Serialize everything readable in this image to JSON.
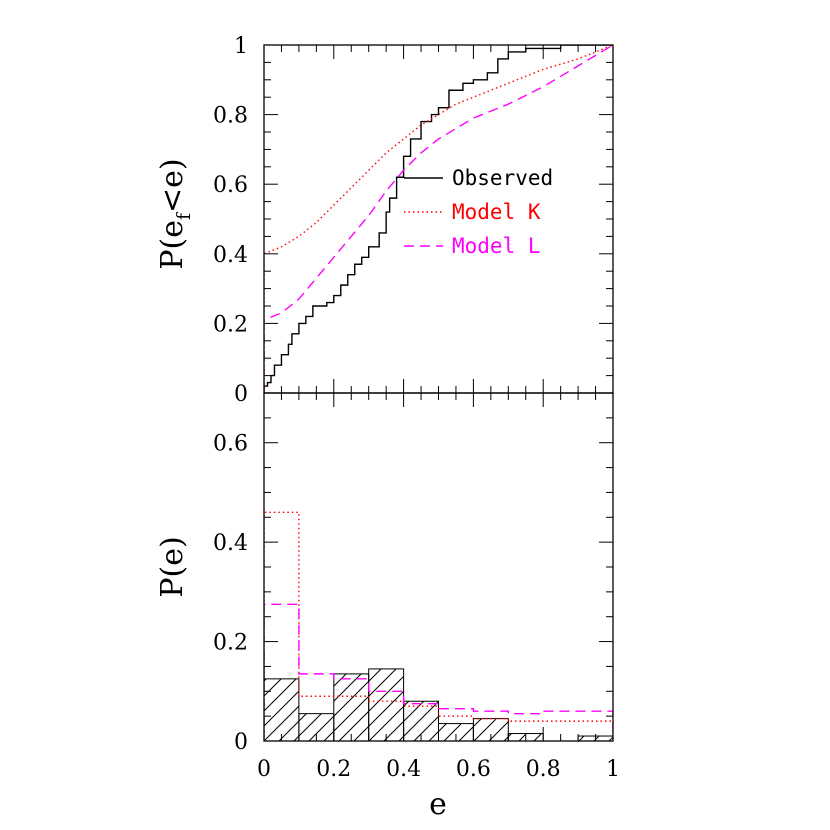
{
  "colors": {
    "observed": "#000000",
    "model_k": "#ff0000",
    "model_l": "#ff00ff"
  },
  "chart_data": [
    {
      "panel": "cumulative",
      "type": "line",
      "ylabel": "P(e<e)",
      "ylabel_parts": [
        "P(e",
        "f",
        "<e)"
      ],
      "xlabel": "",
      "xlim": [
        0,
        1
      ],
      "ylim": [
        0,
        1
      ],
      "y_ticks": [
        0,
        0.2,
        0.4,
        0.6,
        0.8,
        1
      ],
      "y_tick_labels": [
        "0",
        "0.2",
        "0.4",
        "0.6",
        "0.8",
        "1"
      ],
      "legend": {
        "placement": "center-right",
        "entries": [
          {
            "label": "Observed",
            "style": "solid",
            "color": "#000000"
          },
          {
            "label": "Model K",
            "style": "dotted",
            "color": "#ff0000"
          },
          {
            "label": "Model L",
            "style": "dashed",
            "color": "#ff00ff"
          }
        ]
      },
      "series": [
        {
          "name": "Observed",
          "style": "solid",
          "step": true,
          "points": [
            [
              0.0,
              0.0
            ],
            [
              0.0,
              0.02
            ],
            [
              0.01,
              0.03
            ],
            [
              0.02,
              0.05
            ],
            [
              0.03,
              0.08
            ],
            [
              0.05,
              0.11
            ],
            [
              0.07,
              0.14
            ],
            [
              0.08,
              0.17
            ],
            [
              0.1,
              0.2
            ],
            [
              0.12,
              0.22
            ],
            [
              0.14,
              0.25
            ],
            [
              0.18,
              0.26
            ],
            [
              0.2,
              0.28
            ],
            [
              0.22,
              0.31
            ],
            [
              0.24,
              0.34
            ],
            [
              0.26,
              0.37
            ],
            [
              0.28,
              0.39
            ],
            [
              0.3,
              0.42
            ],
            [
              0.33,
              0.46
            ],
            [
              0.35,
              0.52
            ],
            [
              0.36,
              0.56
            ],
            [
              0.38,
              0.62
            ],
            [
              0.4,
              0.68
            ],
            [
              0.42,
              0.73
            ],
            [
              0.45,
              0.78
            ],
            [
              0.48,
              0.8
            ],
            [
              0.5,
              0.82
            ],
            [
              0.53,
              0.87
            ],
            [
              0.57,
              0.89
            ],
            [
              0.6,
              0.9
            ],
            [
              0.64,
              0.92
            ],
            [
              0.67,
              0.96
            ],
            [
              0.7,
              0.98
            ],
            [
              0.75,
              0.99
            ],
            [
              0.85,
              1.0
            ],
            [
              1.0,
              1.0
            ]
          ]
        },
        {
          "name": "Model K",
          "style": "dotted",
          "step": false,
          "points": [
            [
              0.0,
              0.0
            ],
            [
              0.0,
              0.4
            ],
            [
              0.05,
              0.42
            ],
            [
              0.1,
              0.45
            ],
            [
              0.15,
              0.49
            ],
            [
              0.2,
              0.54
            ],
            [
              0.25,
              0.59
            ],
            [
              0.3,
              0.64
            ],
            [
              0.35,
              0.69
            ],
            [
              0.4,
              0.73
            ],
            [
              0.45,
              0.77
            ],
            [
              0.5,
              0.8
            ],
            [
              0.55,
              0.83
            ],
            [
              0.6,
              0.85
            ],
            [
              0.65,
              0.87
            ],
            [
              0.7,
              0.89
            ],
            [
              0.8,
              0.93
            ],
            [
              0.9,
              0.96
            ],
            [
              1.0,
              1.0
            ]
          ]
        },
        {
          "name": "Model L",
          "style": "dashed",
          "step": false,
          "points": [
            [
              0.0,
              0.0
            ],
            [
              0.0,
              0.21
            ],
            [
              0.05,
              0.23
            ],
            [
              0.1,
              0.27
            ],
            [
              0.15,
              0.33
            ],
            [
              0.2,
              0.39
            ],
            [
              0.25,
              0.45
            ],
            [
              0.3,
              0.51
            ],
            [
              0.35,
              0.58
            ],
            [
              0.4,
              0.64
            ],
            [
              0.45,
              0.69
            ],
            [
              0.5,
              0.73
            ],
            [
              0.55,
              0.76
            ],
            [
              0.6,
              0.79
            ],
            [
              0.65,
              0.81
            ],
            [
              0.7,
              0.83
            ],
            [
              0.8,
              0.88
            ],
            [
              0.9,
              0.94
            ],
            [
              1.0,
              1.0
            ]
          ]
        }
      ]
    },
    {
      "panel": "histogram",
      "type": "bar",
      "ylabel": "P(e)",
      "xlabel": "e",
      "xlim": [
        0,
        1
      ],
      "ylim": [
        0,
        0.7
      ],
      "x_ticks": [
        0,
        0.2,
        0.4,
        0.6,
        0.8,
        1
      ],
      "x_tick_labels": [
        "0",
        "0.2",
        "0.4",
        "0.6",
        "0.8",
        "1"
      ],
      "y_ticks": [
        0,
        0.2,
        0.4,
        0.6
      ],
      "y_tick_labels": [
        "0",
        "0.2",
        "0.4",
        "0.6"
      ],
      "bin_edges": [
        0,
        0.1,
        0.2,
        0.3,
        0.4,
        0.5,
        0.6,
        0.7,
        0.8,
        0.9,
        1.0
      ],
      "series": [
        {
          "name": "Observed",
          "style": "hatched",
          "values": [
            0.125,
            0.055,
            0.135,
            0.145,
            0.08,
            0.035,
            0.045,
            0.015,
            0.0,
            0.01
          ]
        },
        {
          "name": "Model K",
          "style": "dotted",
          "values": [
            0.46,
            0.09,
            0.09,
            0.08,
            0.07,
            0.05,
            0.045,
            0.04,
            0.04,
            0.04
          ]
        },
        {
          "name": "Model L",
          "style": "dashed",
          "values": [
            0.275,
            0.135,
            0.125,
            0.1,
            0.075,
            0.065,
            0.06,
            0.055,
            0.06,
            0.06
          ]
        }
      ]
    }
  ]
}
